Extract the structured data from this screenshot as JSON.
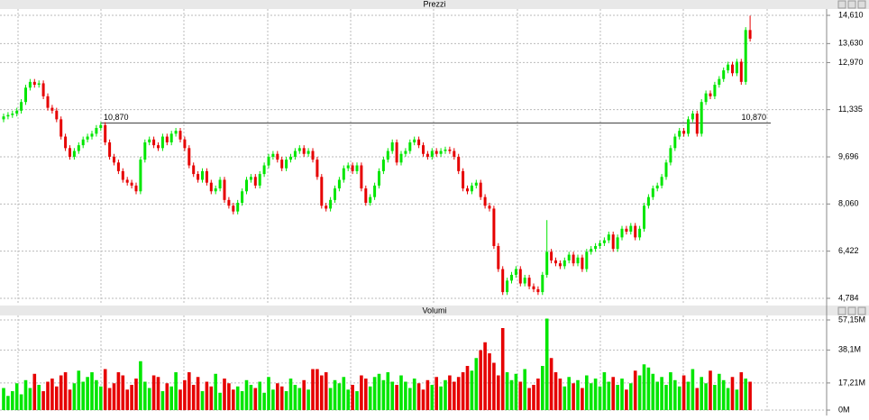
{
  "chart_data": [
    {
      "type": "candlestick",
      "title": "Prezzi",
      "open": [
        11000,
        11100,
        11150,
        11200,
        11300,
        11600,
        12100,
        12300,
        12200,
        12250,
        11800,
        11400,
        11300,
        11000,
        10400,
        10000,
        9700,
        9900,
        10100,
        10300,
        10400,
        10500,
        10700,
        10800,
        10200,
        9700,
        9500,
        9200,
        8900,
        8800,
        8700,
        8500,
        9600,
        10200,
        10300,
        10100,
        10000,
        10400,
        10200,
        10500,
        10600,
        10300,
        10000,
        9400,
        9100,
        8900,
        9200,
        8800,
        8500,
        8600,
        8900,
        8200,
        8000,
        7800,
        8100,
        8500,
        8900,
        9000,
        8700,
        9100,
        9400,
        9700,
        9800,
        9600,
        9300,
        9600,
        9700,
        9900,
        10000,
        9800,
        9900,
        9600,
        9000,
        8000,
        7900,
        8200,
        8600,
        8900,
        9300,
        9400,
        9200,
        9400,
        8600,
        8100,
        8300,
        8700,
        9200,
        9600,
        9900,
        10200,
        9500,
        9800,
        9900,
        10200,
        10300,
        10100,
        9800,
        9700,
        9900,
        9800,
        9900,
        9950,
        9900,
        9700,
        9200,
        8600,
        8500,
        8700,
        8800,
        8300,
        8000,
        7900,
        6600,
        5800,
        5000,
        5400,
        5600,
        5800,
        5300,
        5500,
        5200,
        5100,
        5000,
        5600,
        6400,
        6100,
        6000,
        5900,
        6100,
        6300,
        6000,
        6200,
        5800,
        6400,
        6500,
        6600,
        6700,
        6800,
        7000,
        6500,
        6900,
        7200,
        7100,
        7300,
        6900,
        7200,
        8000,
        8300,
        8600,
        8700,
        9000,
        9500,
        10000,
        10400,
        10600,
        10500,
        11000,
        11200,
        10500,
        11600,
        11900,
        11800,
        12200,
        12400,
        12700,
        12900,
        12600,
        13000,
        12300,
        14100
      ],
      "high": [
        11200,
        11250,
        11300,
        11400,
        11700,
        12200,
        12400,
        12400,
        12350,
        12350,
        11900,
        11500,
        11400,
        11100,
        10500,
        10100,
        10000,
        10200,
        10400,
        10500,
        10600,
        10800,
        10900,
        10900,
        10300,
        9800,
        9600,
        9300,
        9000,
        8900,
        8800,
        9700,
        10300,
        10400,
        10400,
        10200,
        10500,
        10500,
        10600,
        10700,
        10700,
        10400,
        10100,
        9500,
        9200,
        9300,
        9300,
        8900,
        8700,
        9000,
        9000,
        8300,
        8100,
        8200,
        8600,
        9000,
        9100,
        9100,
        9200,
        9500,
        9800,
        9900,
        9900,
        9700,
        9700,
        9800,
        10000,
        10100,
        10100,
        10000,
        10000,
        9700,
        9100,
        8100,
        8300,
        8700,
        9000,
        9400,
        9500,
        9500,
        9500,
        9500,
        8700,
        8400,
        8800,
        9300,
        9700,
        10000,
        10300,
        10300,
        9900,
        10000,
        10300,
        10400,
        10400,
        10200,
        9900,
        10000,
        10000,
        10000,
        10050,
        10050,
        10000,
        9800,
        9300,
        8700,
        8800,
        8900,
        8900,
        8400,
        8100,
        8000,
        6700,
        5900,
        5500,
        5700,
        5900,
        5900,
        5600,
        5600,
        5300,
        5200,
        5700,
        7500,
        6500,
        6200,
        6100,
        6200,
        6400,
        6400,
        6300,
        6300,
        6500,
        6600,
        6700,
        6800,
        6900,
        7100,
        7100,
        7000,
        7300,
        7300,
        7400,
        7400,
        7300,
        8100,
        8400,
        8700,
        8800,
        9100,
        9600,
        10100,
        10500,
        10700,
        10700,
        11100,
        11300,
        11300,
        11700,
        12000,
        12000,
        12300,
        12500,
        12800,
        13000,
        13000,
        13100,
        13100,
        14200,
        14600
      ],
      "low": [
        10900,
        11000,
        11050,
        11100,
        11200,
        11500,
        12000,
        12100,
        12100,
        11700,
        11300,
        11200,
        10900,
        10300,
        9900,
        9600,
        9600,
        9800,
        10000,
        10200,
        10300,
        10400,
        10600,
        10100,
        9600,
        9400,
        9100,
        8800,
        8700,
        8600,
        8400,
        8400,
        9500,
        10100,
        10000,
        9900,
        9900,
        10100,
        10100,
        10400,
        10200,
        9900,
        9300,
        9000,
        8800,
        8800,
        8700,
        8400,
        8400,
        8500,
        8100,
        7900,
        7700,
        7700,
        8000,
        8400,
        8800,
        8600,
        8600,
        9000,
        9300,
        9600,
        9500,
        9200,
        9200,
        9500,
        9600,
        9800,
        9700,
        9700,
        9500,
        8900,
        7900,
        7800,
        7800,
        8100,
        8500,
        8800,
        9200,
        9100,
        9100,
        8500,
        8000,
        8000,
        8200,
        8600,
        9100,
        9500,
        9800,
        9400,
        9400,
        9700,
        9800,
        10100,
        10000,
        9700,
        9600,
        9600,
        9700,
        9700,
        9800,
        9800,
        9600,
        9100,
        8500,
        8400,
        8400,
        8600,
        8200,
        7900,
        7800,
        6500,
        5700,
        4900,
        4900,
        5300,
        5500,
        5200,
        5200,
        5100,
        5000,
        4900,
        4900,
        5500,
        6000,
        5900,
        5800,
        5800,
        6000,
        5900,
        5900,
        5700,
        5700,
        6300,
        6400,
        6500,
        6600,
        6700,
        6400,
        6400,
        6800,
        7000,
        7000,
        6800,
        6800,
        7100,
        7900,
        8200,
        8500,
        8600,
        8900,
        9400,
        9900,
        10300,
        10400,
        10400,
        10900,
        10400,
        10400,
        11500,
        11700,
        11700,
        12100,
        12300,
        12600,
        12500,
        12500,
        12200,
        12200,
        13700
      ],
      "close": [
        11100,
        11150,
        11200,
        11300,
        11600,
        12100,
        12300,
        12200,
        12250,
        11800,
        11400,
        11300,
        11000,
        10400,
        10000,
        9700,
        9900,
        10100,
        10300,
        10400,
        10500,
        10700,
        10800,
        10200,
        9700,
        9500,
        9200,
        8900,
        8800,
        8700,
        8500,
        9600,
        10200,
        10300,
        10100,
        10000,
        10400,
        10200,
        10500,
        10600,
        10300,
        10000,
        9400,
        9100,
        8900,
        9200,
        8800,
        8500,
        8600,
        8900,
        8200,
        8000,
        7800,
        8100,
        8500,
        8900,
        9000,
        8700,
        9100,
        9400,
        9700,
        9800,
        9600,
        9300,
        9600,
        9700,
        9900,
        10000,
        9800,
        9900,
        9600,
        9000,
        8000,
        7900,
        8200,
        8600,
        8900,
        9300,
        9400,
        9200,
        9400,
        8600,
        8100,
        8300,
        8700,
        9200,
        9600,
        9900,
        10200,
        9500,
        9800,
        9900,
        10200,
        10300,
        10100,
        9800,
        9700,
        9900,
        9800,
        9900,
        9950,
        9900,
        9700,
        9200,
        8600,
        8500,
        8700,
        8800,
        8300,
        8000,
        7900,
        6600,
        5800,
        5000,
        5400,
        5600,
        5800,
        5300,
        5500,
        5200,
        5100,
        5000,
        5600,
        6400,
        6100,
        6000,
        5900,
        6100,
        6300,
        6000,
        6200,
        5800,
        6400,
        6500,
        6600,
        6700,
        6800,
        7000,
        6500,
        6900,
        7200,
        7100,
        7300,
        6900,
        7200,
        8000,
        8300,
        8600,
        8700,
        9000,
        9500,
        10000,
        10400,
        10600,
        10500,
        11000,
        11200,
        10500,
        11600,
        11900,
        11800,
        12200,
        12400,
        12700,
        12900,
        12600,
        13000,
        12300,
        14100,
        13800
      ],
      "up_color": "#00e600",
      "down_color": "#e60000",
      "ylim": [
        4565,
        14830
      ],
      "yticks": [
        {
          "value": 4784,
          "label": "4,784"
        },
        {
          "value": 6422,
          "label": "6,422"
        },
        {
          "value": 8060,
          "label": "8,060"
        },
        {
          "value": 9696,
          "label": "9,696"
        },
        {
          "value": 11335,
          "label": "11,335"
        },
        {
          "value": 12970,
          "label": "12,970"
        },
        {
          "value": 13630,
          "label": "13,630"
        },
        {
          "value": 14610,
          "label": "14,610"
        }
      ],
      "reference_line": {
        "value": 10870,
        "label": "10,870"
      },
      "grid": true
    },
    {
      "type": "bar",
      "title": "Volumi",
      "values": [
        14,
        9,
        12,
        17,
        10,
        19,
        14,
        23,
        16,
        12,
        18,
        20,
        15,
        22,
        24,
        13,
        17,
        25,
        18,
        21,
        24,
        19,
        15,
        26,
        14,
        17,
        24,
        22,
        13,
        16,
        20,
        31,
        18,
        14,
        22,
        21,
        12,
        17,
        15,
        24,
        13,
        19,
        24,
        16,
        21,
        12,
        18,
        15,
        23,
        11,
        20,
        17,
        13,
        15,
        12,
        19,
        16,
        14,
        18,
        11,
        21,
        13,
        17,
        15,
        12,
        20,
        16,
        14,
        19,
        13,
        26,
        26,
        22,
        24,
        14,
        19,
        17,
        21,
        13,
        16,
        12,
        22,
        20,
        15,
        21,
        23,
        19,
        24,
        18,
        16,
        22,
        18,
        14,
        20,
        17,
        13,
        19,
        16,
        21,
        15,
        19,
        22,
        18,
        21,
        24,
        28,
        25,
        33,
        38,
        43,
        36,
        30,
        22,
        52,
        24,
        19,
        23,
        18,
        26,
        14,
        16,
        20,
        28,
        58,
        33,
        24,
        20,
        15,
        21,
        17,
        19,
        14,
        22,
        17,
        20,
        15,
        24,
        18,
        21,
        16,
        20,
        13,
        17,
        25,
        22,
        29,
        27,
        23,
        18,
        21,
        16,
        24,
        19,
        15,
        22,
        18,
        26,
        14,
        21,
        17,
        25,
        16,
        23,
        19,
        14,
        21,
        13,
        24,
        20,
        18
      ],
      "ylim": [
        -1.7,
        60
      ],
      "yticks": [
        {
          "value": 0,
          "label": "0M"
        },
        {
          "value": 17.21,
          "label": "17,21M"
        },
        {
          "value": 38.1,
          "label": "38,1M"
        },
        {
          "value": 57.15,
          "label": "57,15M"
        }
      ],
      "grid": true
    }
  ]
}
